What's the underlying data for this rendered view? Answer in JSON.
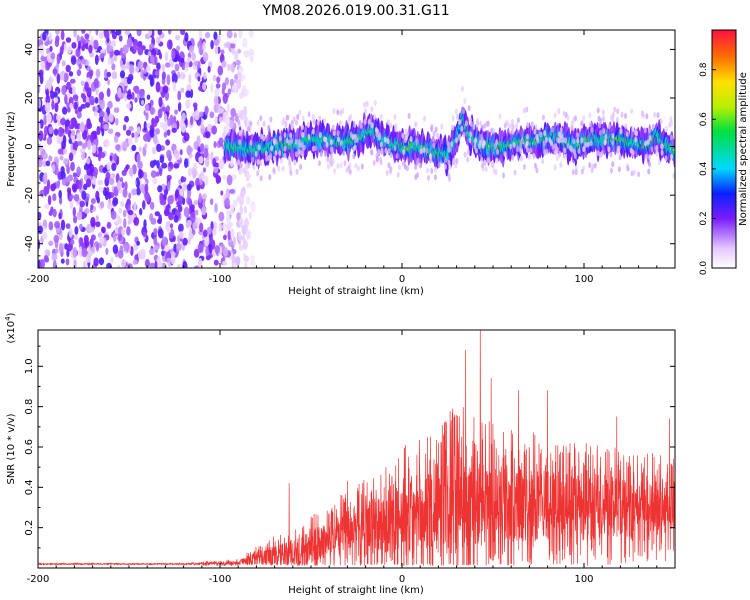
{
  "title": "YM08.2026.019.00.31.G11",
  "chart_data": [
    {
      "type": "heatmap",
      "name": "spectrogram",
      "xlabel": "Height of straight line (km)",
      "ylabel": "Frequency (Hz)",
      "xlim": [
        -200,
        150
      ],
      "ylim": [
        -50,
        48
      ],
      "xticks": [
        -200,
        -100,
        0,
        100
      ],
      "xtick_labels": [
        "-200",
        "-100",
        "0",
        "100"
      ],
      "yticks": [
        -40,
        -20,
        0,
        20,
        40
      ],
      "ytick_labels": [
        "-40",
        "-20",
        "0",
        "20",
        "40"
      ],
      "noise_region_x": [
        -200,
        -88
      ],
      "ridge_track": {
        "x": [
          -97,
          -90,
          -80,
          -70,
          -60,
          -50,
          -40,
          -30,
          -20,
          -17,
          -10,
          0,
          10,
          20,
          25,
          30,
          33,
          37,
          45,
          55,
          65,
          75,
          85,
          95,
          105,
          115,
          125,
          135,
          140,
          145,
          150
        ],
        "y": [
          0,
          0,
          -1,
          0,
          1,
          3,
          3,
          2,
          5,
          7,
          2,
          0,
          0,
          -3,
          -3,
          3,
          12,
          5,
          0,
          0,
          2,
          3,
          4,
          0,
          3,
          3,
          2,
          1,
          5,
          0,
          -1
        ]
      },
      "colorbar": {
        "label": "Normalized spectral amplitude",
        "range": [
          0,
          0.96
        ],
        "ticks": [
          0.0,
          0.2,
          0.4,
          0.6,
          0.8
        ],
        "tick_labels": [
          "0.0",
          "0.2",
          "0.4",
          "0.6",
          "0.8"
        ],
        "stops": [
          {
            "v": 0.0,
            "color": "#ffffff"
          },
          {
            "v": 0.08,
            "color": "#e4c8ff"
          },
          {
            "v": 0.2,
            "color": "#7a1cff"
          },
          {
            "v": 0.3,
            "color": "#0a20ff"
          },
          {
            "v": 0.4,
            "color": "#00d8ff"
          },
          {
            "v": 0.55,
            "color": "#00e040"
          },
          {
            "v": 0.65,
            "color": "#b8f000"
          },
          {
            "v": 0.75,
            "color": "#ffe000"
          },
          {
            "v": 0.85,
            "color": "#ff7000"
          },
          {
            "v": 0.96,
            "color": "#ff1040"
          }
        ]
      }
    },
    {
      "type": "line",
      "name": "snr",
      "xlabel": "Height of straight line (km)",
      "ylabel": "SNR (10 * v/v)",
      "scale_label": "(x10",
      "scale_exponent": "4",
      "scale_suffix": ")",
      "xlim": [
        -200,
        150
      ],
      "ylim": [
        0,
        1.18
      ],
      "xticks": [
        -200,
        -100,
        0,
        100
      ],
      "xtick_labels": [
        "-200",
        "-100",
        "0",
        "100"
      ],
      "yticks": [
        0.2,
        0.4,
        0.6,
        0.8,
        1.0
      ],
      "ytick_labels": [
        "0.2",
        "0.4",
        "0.6",
        "0.8",
        "1.0"
      ],
      "line_color": "#ee3333",
      "envelope": {
        "x": [
          -200,
          -120,
          -90,
          -80,
          -70,
          -60,
          -50,
          -40,
          -30,
          -20,
          -10,
          0,
          10,
          20,
          30,
          40,
          50,
          60,
          70,
          80,
          90,
          100,
          110,
          120,
          130,
          140,
          150
        ],
        "base": [
          0.02,
          0.02,
          0.025,
          0.05,
          0.06,
          0.08,
          0.1,
          0.15,
          0.18,
          0.2,
          0.22,
          0.25,
          0.28,
          0.3,
          0.32,
          0.34,
          0.33,
          0.32,
          0.32,
          0.31,
          0.31,
          0.3,
          0.3,
          0.3,
          0.3,
          0.3,
          0.3
        ],
        "amp": [
          0.005,
          0.005,
          0.02,
          0.06,
          0.1,
          0.12,
          0.16,
          0.18,
          0.2,
          0.25,
          0.3,
          0.35,
          0.38,
          0.45,
          0.5,
          0.45,
          0.4,
          0.38,
          0.36,
          0.34,
          0.33,
          0.33,
          0.3,
          0.3,
          0.28,
          0.28,
          0.25
        ]
      },
      "peaks": [
        {
          "x": -62,
          "y": 0.42
        },
        {
          "x": -30,
          "y": 0.43
        },
        {
          "x": 35,
          "y": 1.08
        },
        {
          "x": 43,
          "y": 1.18
        },
        {
          "x": 49,
          "y": 0.94
        },
        {
          "x": 64,
          "y": 0.88
        },
        {
          "x": 80,
          "y": 0.88
        },
        {
          "x": 118,
          "y": 0.75
        },
        {
          "x": 147,
          "y": 0.74
        }
      ]
    }
  ]
}
